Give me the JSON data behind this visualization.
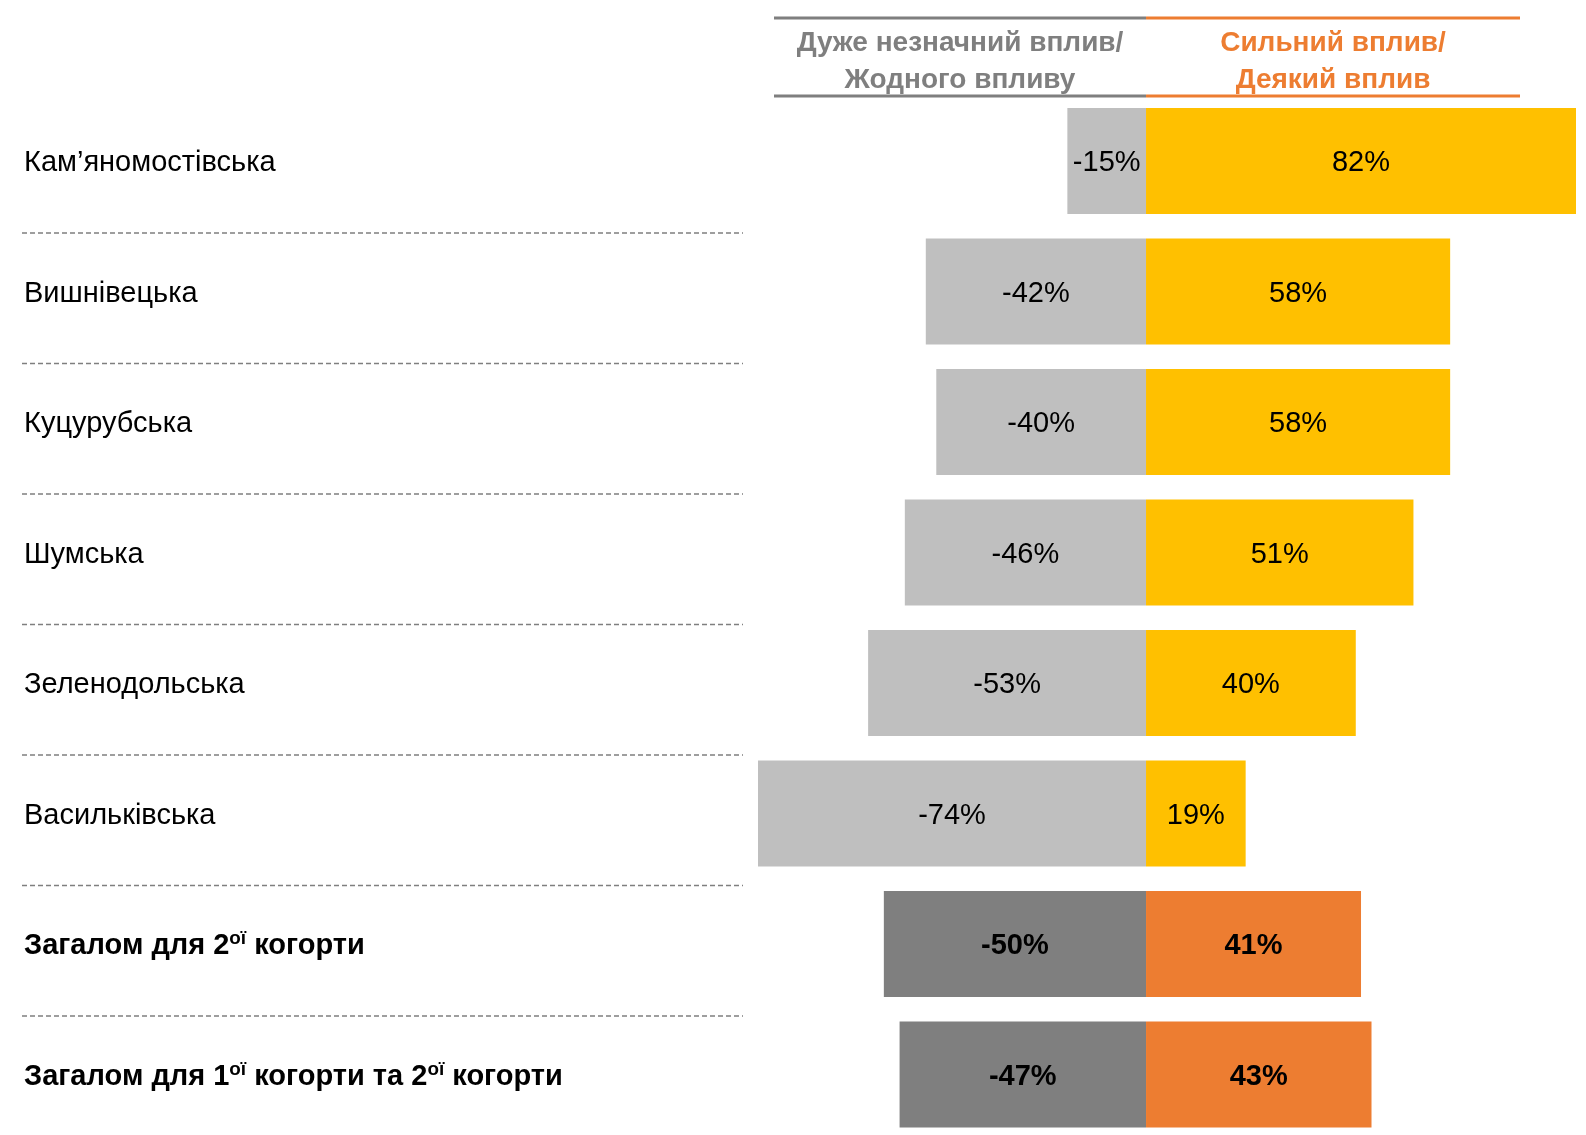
{
  "chart_data": {
    "type": "bar",
    "orientation": "horizontal",
    "stacked": true,
    "legend": "top",
    "categories": [
      "Кам’яномостівська",
      "Вишнівецька",
      "Куцурубська",
      "Шумська",
      "Зеленодольська",
      "Васильківська",
      "Загалом для 2$^{ої}$  когорти",
      "Загалом для 1$^{ої}$ когорти та 2$^{ої}$ когорти"
    ],
    "series": [
      {
        "name": "Дуже незначний вплив/ Жодного впливу",
        "color": "#bfbfbf",
        "colors": [
          "#bfbfbf",
          "#bfbfbf",
          "#bfbfbf",
          "#bfbfbf",
          "#bfbfbf",
          "#bfbfbf",
          "#7f7f7f",
          "#7f7f7f"
        ],
        "values": [
          -15,
          -42,
          -40,
          -46,
          -53,
          -74,
          -50,
          -47
        ],
        "value_labels": [
          "-15%",
          "-42%",
          "-40%",
          "-46%",
          "-53%",
          "-74%",
          "-50%",
          "-47%"
        ]
      },
      {
        "name": "Сильний вплив/ Деякий вплив",
        "color": "#ffc000",
        "colors": [
          "#ffc000",
          "#ffc000",
          "#ffc000",
          "#ffc000",
          "#ffc000",
          "#ffc000",
          "#ed7d31",
          "#ed7d31"
        ],
        "values": [
          82,
          58,
          58,
          51,
          40,
          19,
          41,
          43
        ],
        "value_labels": [
          "82%",
          "58%",
          "58%",
          "51%",
          "40%",
          "19%",
          "41%",
          "43%"
        ]
      }
    ]
  }
}
